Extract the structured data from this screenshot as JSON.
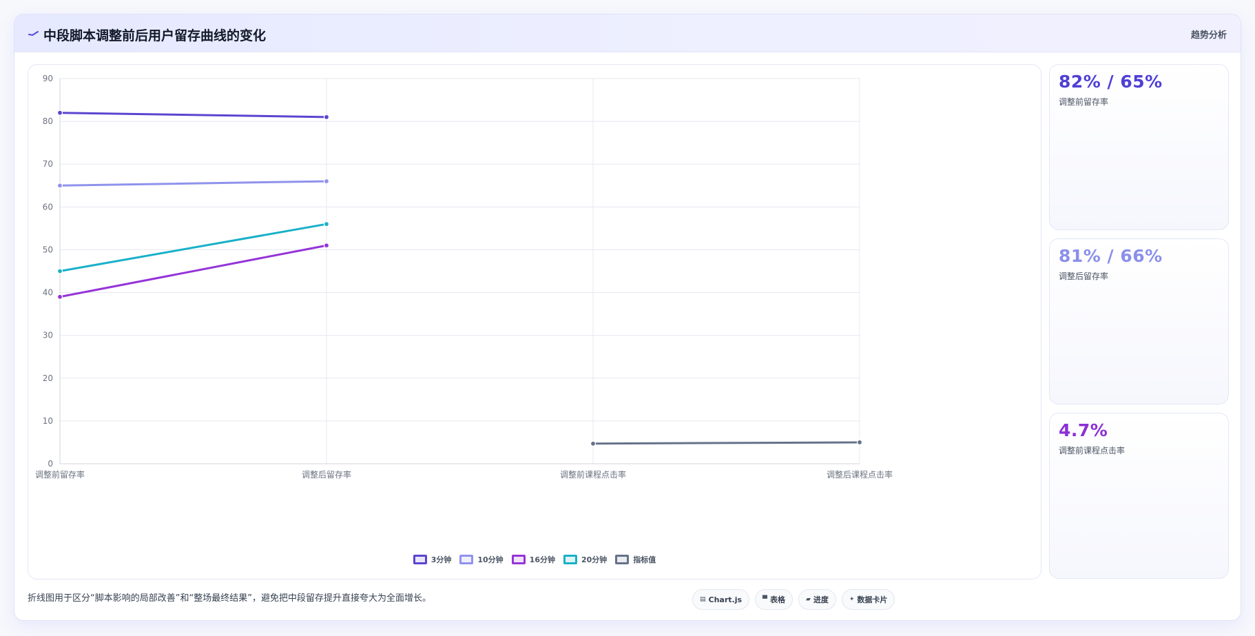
{
  "header": {
    "title": "中段脚本调整前后用户留存曲线的变化",
    "link": "趋势分析",
    "icon": "trend-line-icon",
    "icon_color": "#4f46e5"
  },
  "chart_data": {
    "type": "line",
    "categories": [
      "调整前留存率",
      "调整后留存率",
      "调整前课程点击率",
      "调整后课程点击率"
    ],
    "ylim": [
      0,
      90
    ],
    "yticks": [
      0,
      10,
      20,
      30,
      40,
      50,
      60,
      70,
      80,
      90
    ],
    "grid": true,
    "legend_position": "bottom",
    "series": [
      {
        "name": "3分钟",
        "color": "#5a45d0",
        "values": [
          82,
          81,
          null,
          null
        ]
      },
      {
        "name": "10分钟",
        "color": "#8f92ec",
        "values": [
          65,
          66,
          null,
          null
        ]
      },
      {
        "name": "16分钟",
        "color": "#9534d8",
        "values": [
          39,
          51,
          null,
          null
        ]
      },
      {
        "name": "20分钟",
        "color": "#18b0c8",
        "values": [
          45,
          56,
          null,
          null
        ]
      },
      {
        "name": "指标值",
        "color": "#66728a",
        "values": [
          null,
          null,
          4.7,
          5.0
        ]
      }
    ]
  },
  "metrics": [
    {
      "value": "82% / 65%",
      "label": "调整前留存率",
      "color": "#4f3fd6"
    },
    {
      "value": "81% / 66%",
      "label": "调整后留存率",
      "color": "#8b8fea"
    },
    {
      "value": "4.7%",
      "label": "调整前课程点击率",
      "color": "#8b2fd6"
    }
  ],
  "footer": {
    "note": "折线图用于区分“脚本影响的局部改善”和“整场最终结果”，避免把中段留存提升直接夸大为全面增长。",
    "tags": [
      {
        "icon": "chart-icon",
        "glyph": "▤",
        "label": "Chart.js"
      },
      {
        "icon": "table-icon",
        "glyph": "▀",
        "label": "表格"
      },
      {
        "icon": "progress-icon",
        "glyph": "▰",
        "label": "进度"
      },
      {
        "icon": "card-icon",
        "glyph": "✦",
        "label": "数据卡片"
      }
    ]
  }
}
